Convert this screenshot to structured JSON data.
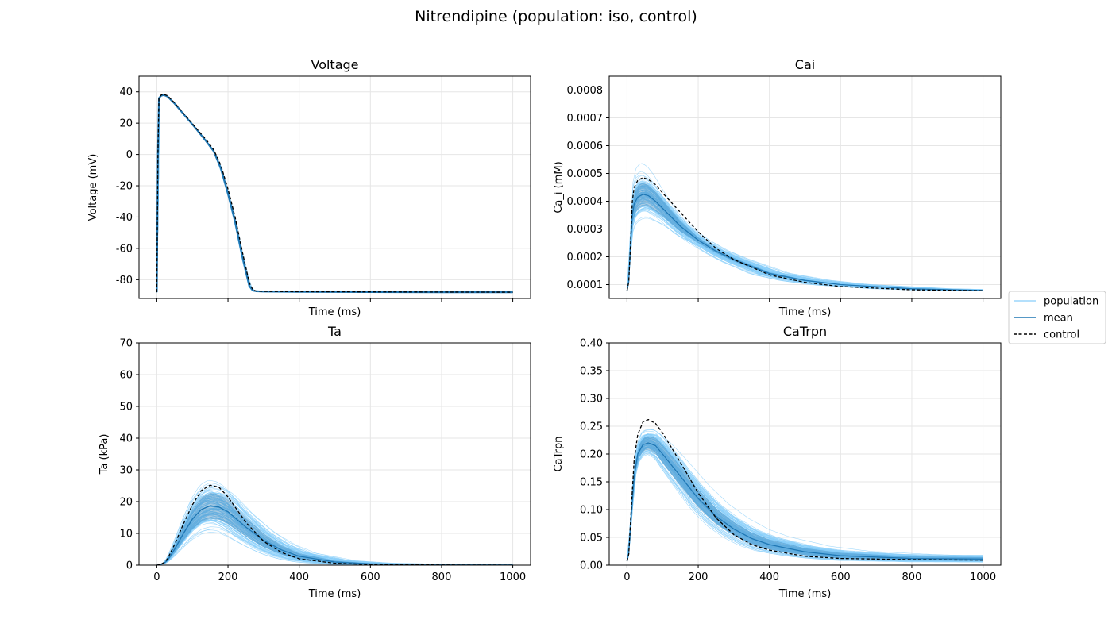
{
  "figure": {
    "title": "Nitrendipine (population: iso, control)"
  },
  "legend": {
    "placement": "right-center",
    "entries": [
      {
        "label": "population",
        "color": "#87cefa",
        "style": "solid-thin"
      },
      {
        "label": "mean",
        "color": "#1f77b4",
        "style": "solid"
      },
      {
        "label": "control",
        "color": "#000000",
        "style": "dashed"
      }
    ]
  },
  "colors": {
    "population": "#87cefa",
    "band": "#1f77b4",
    "mean": "#1f77b4",
    "control": "#000000",
    "grid": "#e6e6e6"
  },
  "chart_data": [
    {
      "type": "line",
      "title": "Voltage",
      "xlabel": "Time (ms)",
      "ylabel": "Voltage (mV)",
      "xlim": [
        -50,
        1050
      ],
      "ylim": [
        -92,
        50
      ],
      "xticks": [
        0,
        200,
        400,
        600,
        800,
        1000
      ],
      "xtick_labels_visible": false,
      "yticks": [
        -80,
        -60,
        -40,
        -20,
        0,
        20,
        40
      ],
      "grid": true,
      "control": {
        "x": [
          0,
          3,
          6,
          12,
          20,
          30,
          50,
          80,
          110,
          140,
          160,
          180,
          200,
          220,
          240,
          260,
          270,
          280,
          300,
          400,
          600,
          800,
          1000
        ],
        "y": [
          -88,
          0,
          36,
          38,
          38.4,
          37.5,
          33,
          25,
          17,
          9,
          3,
          -7,
          -22,
          -40,
          -62,
          -82,
          -86.5,
          -87.3,
          -87.5,
          -87.7,
          -87.8,
          -87.9,
          -88
        ]
      },
      "mean": {
        "x": [
          0,
          3,
          6,
          12,
          20,
          30,
          50,
          80,
          110,
          140,
          160,
          180,
          200,
          220,
          240,
          260,
          270,
          280,
          300,
          400,
          600,
          800,
          1000
        ],
        "y": [
          -88,
          0,
          36,
          37.5,
          38,
          37,
          32.5,
          24.5,
          16.5,
          8,
          2,
          -9,
          -25,
          -43,
          -65,
          -84,
          -87,
          -87.4,
          -87.6,
          -87.8,
          -87.9,
          -88,
          -88
        ]
      }
    },
    {
      "type": "line",
      "title": "Cai",
      "xlabel": "Time (ms)",
      "ylabel": "Ca_i (mM)",
      "xlim": [
        -50,
        1050
      ],
      "ylim": [
        5e-05,
        0.00085
      ],
      "xticks": [
        0,
        200,
        400,
        600,
        800,
        1000
      ],
      "xtick_labels_visible": false,
      "yticks": [
        0.0001,
        0.0002,
        0.0003,
        0.0004,
        0.0005,
        0.0006,
        0.0007,
        0.0008
      ],
      "ytick_labels": [
        "0.0001",
        "0.0002",
        "0.0003",
        "0.0004",
        "0.0005",
        "0.0006",
        "0.0007",
        "0.0008"
      ],
      "grid": true,
      "control": {
        "x": [
          0,
          5,
          10,
          15,
          20,
          30,
          45,
          60,
          80,
          100,
          150,
          200,
          250,
          300,
          400,
          500,
          600,
          800,
          1000
        ],
        "y": [
          7.8e-05,
          0.00011,
          0.00025,
          0.0004,
          0.00045,
          0.000475,
          0.000485,
          0.000478,
          0.00046,
          0.00043,
          0.00036,
          0.00029,
          0.00023,
          0.00019,
          0.000135,
          0.000108,
          9.3e-05,
          8.1e-05,
          7.8e-05
        ]
      },
      "mean": {
        "x": [
          0,
          5,
          10,
          15,
          20,
          30,
          45,
          60,
          80,
          100,
          150,
          200,
          250,
          300,
          400,
          500,
          600,
          800,
          1000
        ],
        "y": [
          7.8e-05,
          0.00011,
          0.00025,
          0.00035,
          0.00039,
          0.000415,
          0.000425,
          0.00042,
          0.0004,
          0.000375,
          0.00031,
          0.00026,
          0.00022,
          0.00019,
          0.00014,
          0.000115,
          0.0001,
          8.5e-05,
          7.9e-05
        ]
      },
      "band_spread": [
        0.0,
        0.0,
        0.2,
        0.22,
        0.23,
        0.23,
        0.22,
        0.21,
        0.2,
        0.18,
        0.15,
        0.1,
        0.08,
        0.1,
        0.12,
        0.12,
        0.12,
        0.1,
        0.08
      ]
    },
    {
      "type": "line",
      "title": "Ta",
      "xlabel": "Time (ms)",
      "ylabel": "Ta (kPa)",
      "xlim": [
        -50,
        1050
      ],
      "ylim": [
        0,
        70
      ],
      "xticks": [
        0,
        200,
        400,
        600,
        800,
        1000
      ],
      "xtick_labels_visible": true,
      "yticks": [
        0,
        10,
        20,
        30,
        40,
        50,
        60,
        70
      ],
      "grid": true,
      "control": {
        "x": [
          0,
          10,
          20,
          30,
          50,
          75,
          100,
          125,
          150,
          175,
          200,
          250,
          300,
          350,
          400,
          500,
          600,
          800,
          1000
        ],
        "y": [
          0,
          0.2,
          0.8,
          2,
          6.5,
          13,
          19,
          23.5,
          25.2,
          24.5,
          21.5,
          13.5,
          7.5,
          4,
          2,
          0.6,
          0.2,
          0.05,
          0
        ]
      },
      "mean": {
        "x": [
          0,
          10,
          20,
          30,
          50,
          75,
          100,
          125,
          150,
          175,
          200,
          250,
          300,
          350,
          400,
          500,
          600,
          800,
          1000
        ],
        "y": [
          0,
          0.2,
          0.6,
          1.5,
          5,
          10,
          14.5,
          17.5,
          18.7,
          18.3,
          16.8,
          12,
          7.8,
          4.8,
          2.8,
          1,
          0.4,
          0.1,
          0.05
        ]
      },
      "band_spread": [
        0,
        0.3,
        0.35,
        0.38,
        0.4,
        0.4,
        0.4,
        0.4,
        0.4,
        0.4,
        0.42,
        0.45,
        0.5,
        0.55,
        0.6,
        0.7,
        0.8,
        0.9,
        0.9
      ]
    },
    {
      "type": "line",
      "title": "CaTrpn",
      "xlabel": "Time (ms)",
      "ylabel": "CaTrpn",
      "xlim": [
        -50,
        1050
      ],
      "ylim": [
        0,
        0.4
      ],
      "xticks": [
        0,
        200,
        400,
        600,
        800,
        1000
      ],
      "xtick_labels_visible": true,
      "yticks": [
        0,
        0.05,
        0.1,
        0.15,
        0.2,
        0.25,
        0.3,
        0.35,
        0.4
      ],
      "ytick_labels": [
        "0.00",
        "0.05",
        "0.10",
        "0.15",
        "0.20",
        "0.25",
        "0.30",
        "0.35",
        "0.40"
      ],
      "grid": true,
      "control": {
        "x": [
          0,
          5,
          10,
          20,
          30,
          45,
          60,
          80,
          100,
          150,
          200,
          250,
          300,
          350,
          400,
          500,
          600,
          800,
          1000
        ],
        "y": [
          0.007,
          0.02,
          0.08,
          0.19,
          0.235,
          0.258,
          0.262,
          0.255,
          0.238,
          0.185,
          0.13,
          0.085,
          0.055,
          0.037,
          0.027,
          0.016,
          0.012,
          0.01,
          0.009
        ]
      },
      "mean": {
        "x": [
          0,
          5,
          10,
          20,
          30,
          45,
          60,
          80,
          100,
          150,
          200,
          250,
          300,
          350,
          400,
          500,
          600,
          800,
          1000
        ],
        "y": [
          0.007,
          0.02,
          0.07,
          0.16,
          0.2,
          0.217,
          0.22,
          0.215,
          0.2,
          0.16,
          0.12,
          0.088,
          0.065,
          0.048,
          0.037,
          0.024,
          0.017,
          0.012,
          0.011
        ]
      },
      "band_spread": [
        0,
        0.2,
        0.2,
        0.1,
        0.1,
        0.1,
        0.1,
        0.12,
        0.15,
        0.2,
        0.25,
        0.3,
        0.35,
        0.4,
        0.45,
        0.5,
        0.55,
        0.55,
        0.55
      ]
    }
  ]
}
